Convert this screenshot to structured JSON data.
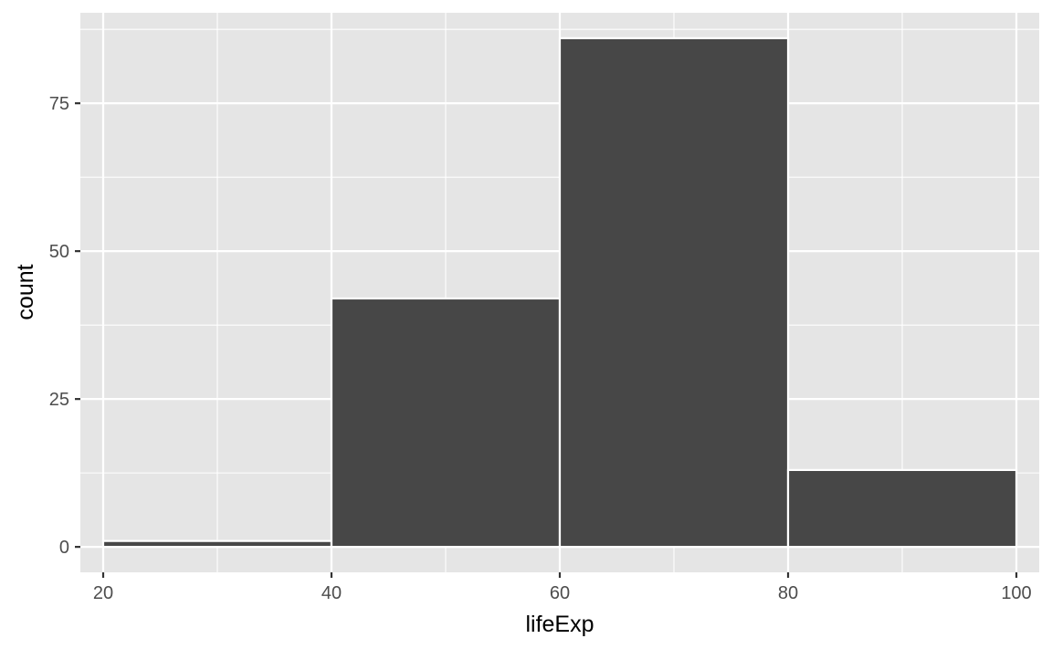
{
  "colors": {
    "panel_background": "#e5e5e5",
    "grid": "#ffffff",
    "bar_fill": "#474747",
    "bar_outline": "#ffffff",
    "tick_text": "#4d4d4d",
    "tick_mark": "#333333"
  },
  "chart_data": {
    "type": "bar",
    "xlabel": "lifeExp",
    "ylabel": "count",
    "xlim": [
      18,
      102
    ],
    "ylim": [
      -4.3,
      90.3
    ],
    "x_ticks": [
      20,
      40,
      60,
      80,
      100
    ],
    "y_ticks": [
      0,
      25,
      50,
      75
    ],
    "x_minor_gridlines": [
      30,
      50,
      70,
      90
    ],
    "y_minor_gridlines": [
      12.5,
      37.5,
      62.5,
      87.5
    ],
    "grid": true,
    "legend": "none",
    "bins": [
      {
        "x_start": 20,
        "x_end": 40,
        "count": 1
      },
      {
        "x_start": 40,
        "x_end": 60,
        "count": 42
      },
      {
        "x_start": 60,
        "x_end": 80,
        "count": 86
      },
      {
        "x_start": 80,
        "x_end": 100,
        "count": 13
      }
    ]
  }
}
